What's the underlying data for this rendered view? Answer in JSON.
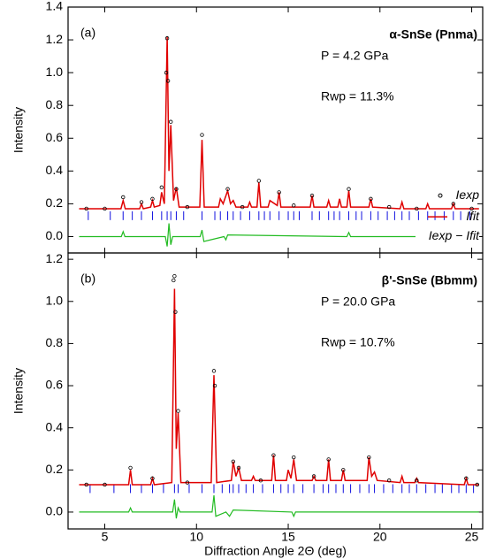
{
  "chart_data": [
    {
      "type": "line",
      "panel_label": "(a)",
      "title": "α-SnSe (Pnma)",
      "pressure": "P = 4.2 GPa",
      "rwp": "Rwp = 11.3%",
      "ylabel": "Intensity",
      "xlim": [
        3,
        25.6
      ],
      "xticks": [
        5,
        10,
        15,
        20,
        25
      ],
      "show_xtick_labels": false,
      "ylim": [
        -0.1,
        1.4
      ],
      "yticks": [
        {
          "value": 0,
          "label": "0.0"
        },
        0.2,
        0.4,
        0.6,
        0.8,
        {
          "value": 1,
          "label": "1.0"
        },
        1.2,
        1.4
      ],
      "series": [
        {
          "name": "Iexp",
          "type": "scatter",
          "color": "#000000",
          "x": [
            4.0,
            5.0,
            6.0,
            7.0,
            7.6,
            8.1,
            8.35,
            8.4,
            8.45,
            8.6,
            8.9,
            9.5,
            10.3,
            11.7,
            12.5,
            13.4,
            14.5,
            15.3,
            16.3,
            18.3,
            19.5,
            20.5,
            22.0,
            24.0,
            25.0
          ],
          "values": [
            0.17,
            0.17,
            0.24,
            0.21,
            0.23,
            0.3,
            1.0,
            1.21,
            0.95,
            0.7,
            0.29,
            0.18,
            0.62,
            0.29,
            0.18,
            0.34,
            0.27,
            0.19,
            0.25,
            0.29,
            0.23,
            0.18,
            0.17,
            0.2,
            0.17
          ]
        },
        {
          "name": "Ifit",
          "type": "line",
          "color": "#e00000",
          "x": [
            3.6,
            5.88,
            6.0,
            6.12,
            6.9,
            7.0,
            7.1,
            7.5,
            7.6,
            7.7,
            8.0,
            8.1,
            8.25,
            8.4,
            8.5,
            8.6,
            8.75,
            8.9,
            9.05,
            10.18,
            10.3,
            10.42,
            11.2,
            11.3,
            11.45,
            11.7,
            11.85,
            12.0,
            12.15,
            12.8,
            12.9,
            13.0,
            13.3,
            13.4,
            13.5,
            13.9,
            14.0,
            14.4,
            14.5,
            14.6,
            16.2,
            16.3,
            16.4,
            17.1,
            17.2,
            17.3,
            17.7,
            17.8,
            17.9,
            18.2,
            18.3,
            18.4,
            19.4,
            19.5,
            19.6,
            21.1,
            21.2,
            21.3,
            22.5,
            22.6,
            22.7,
            23.9,
            24.0,
            24.1,
            25.4
          ],
          "values": [
            0.17,
            0.17,
            0.22,
            0.17,
            0.17,
            0.2,
            0.17,
            0.18,
            0.22,
            0.18,
            0.19,
            0.27,
            0.2,
            1.22,
            0.4,
            0.68,
            0.22,
            0.3,
            0.18,
            0.18,
            0.59,
            0.18,
            0.18,
            0.23,
            0.2,
            0.28,
            0.2,
            0.22,
            0.18,
            0.18,
            0.21,
            0.18,
            0.18,
            0.33,
            0.18,
            0.18,
            0.22,
            0.19,
            0.27,
            0.18,
            0.18,
            0.25,
            0.18,
            0.18,
            0.22,
            0.18,
            0.18,
            0.23,
            0.18,
            0.18,
            0.28,
            0.18,
            0.18,
            0.23,
            0.18,
            0.17,
            0.21,
            0.17,
            0.17,
            0.2,
            0.17,
            0.17,
            0.2,
            0.17,
            0.17
          ]
        },
        {
          "name": "Iexp − Ifit",
          "type": "diff",
          "color": "#22bb22",
          "x": [
            3.6,
            5.9,
            6.0,
            6.1,
            8.3,
            8.4,
            8.5,
            8.6,
            8.7,
            10.2,
            10.3,
            10.4,
            11.5,
            11.6,
            11.7,
            18.2,
            18.3,
            18.4,
            25.4
          ],
          "values": [
            0,
            0,
            0.03,
            0,
            0,
            -0.06,
            0.08,
            -0.05,
            0,
            0,
            0.04,
            -0.03,
            0,
            -0.02,
            0.01,
            0,
            0.025,
            0,
            0
          ]
        },
        {
          "type": "ticks",
          "color": "#1010e0",
          "x": [
            4.1,
            5.3,
            6.0,
            6.5,
            7.0,
            7.6,
            8.1,
            8.4,
            8.6,
            8.9,
            9.3,
            10.3,
            11.0,
            11.3,
            11.7,
            12.0,
            12.4,
            12.9,
            13.4,
            13.7,
            14.0,
            14.5,
            15.0,
            15.3,
            15.6,
            16.3,
            16.7,
            17.2,
            17.5,
            17.8,
            18.3,
            18.7,
            19.0,
            19.5,
            19.9,
            20.4,
            20.8,
            21.2,
            21.6,
            22.1,
            22.6,
            23.0,
            23.5,
            24.0,
            24.4,
            24.9
          ]
        }
      ]
    },
    {
      "type": "line",
      "panel_label": "(b)",
      "title": "β'-SnSe (Bbmm)",
      "pressure": "P = 20.0 GPa",
      "rwp": "Rwp = 10.7%",
      "ylabel": "Intensity",
      "xlabel": "Diffraction Angle 2Θ (deg)",
      "xlim": [
        3,
        25.6
      ],
      "xticks": [
        5,
        10,
        15,
        20,
        25
      ],
      "show_xtick_labels": true,
      "ylim": [
        -0.08,
        1.23
      ],
      "yticks": [
        {
          "value": 0,
          "label": "0.0"
        },
        0.2,
        0.4,
        0.6,
        0.8,
        {
          "value": 1,
          "label": "1.0"
        },
        1.2
      ],
      "series": [
        {
          "type": "scatter",
          "color": "#000000",
          "x": [
            4,
            5,
            6.4,
            7.6,
            8.75,
            8.8,
            8.85,
            9.0,
            9.5,
            10.95,
            11.0,
            12.0,
            12.3,
            13.5,
            14.2,
            15.3,
            16.4,
            17.2,
            18.0,
            19.4,
            20.5,
            22.0,
            24.7,
            25.3
          ],
          "values": [
            0.13,
            0.13,
            0.21,
            0.16,
            1.1,
            1.12,
            0.95,
            0.48,
            0.14,
            0.67,
            0.6,
            0.24,
            0.21,
            0.15,
            0.27,
            0.26,
            0.17,
            0.25,
            0.2,
            0.26,
            0.15,
            0.15,
            0.16,
            0.13
          ]
        },
        {
          "type": "line",
          "color": "#e00000",
          "x": [
            3.6,
            6.3,
            6.4,
            6.5,
            7.5,
            7.6,
            7.7,
            8.65,
            8.8,
            8.9,
            9.0,
            9.15,
            10.8,
            10.95,
            11.1,
            11.9,
            12.0,
            12.15,
            12.3,
            12.45,
            13.0,
            13.1,
            13.2,
            14.1,
            14.2,
            14.3,
            14.9,
            15.0,
            15.15,
            15.3,
            15.45,
            16.3,
            16.4,
            16.5,
            17.1,
            17.2,
            17.3,
            17.9,
            18.0,
            18.1,
            19.3,
            19.4,
            19.55,
            19.7,
            19.85,
            21.1,
            21.2,
            21.3,
            21.9,
            22.0,
            22.1,
            24.6,
            24.7,
            24.8,
            25.4
          ],
          "values": [
            0.13,
            0.13,
            0.2,
            0.13,
            0.13,
            0.16,
            0.13,
            0.14,
            1.06,
            0.3,
            0.47,
            0.14,
            0.14,
            0.65,
            0.14,
            0.15,
            0.24,
            0.17,
            0.21,
            0.15,
            0.15,
            0.17,
            0.15,
            0.15,
            0.27,
            0.15,
            0.15,
            0.2,
            0.16,
            0.25,
            0.15,
            0.15,
            0.17,
            0.15,
            0.15,
            0.25,
            0.15,
            0.15,
            0.2,
            0.15,
            0.15,
            0.26,
            0.17,
            0.19,
            0.15,
            0.14,
            0.17,
            0.14,
            0.14,
            0.16,
            0.14,
            0.13,
            0.16,
            0.13,
            0.13
          ]
        },
        {
          "type": "diff",
          "color": "#22bb22",
          "x": [
            3.6,
            6.3,
            6.4,
            6.5,
            8.7,
            8.8,
            8.9,
            9.0,
            9.1,
            10.85,
            10.95,
            11.05,
            11.6,
            11.8,
            12.0,
            15.2,
            15.3,
            15.4,
            25.4
          ],
          "values": [
            0,
            0,
            0.02,
            0,
            0,
            0.06,
            -0.03,
            0.02,
            0,
            0,
            0.08,
            -0.02,
            0,
            -0.02,
            0.01,
            0,
            -0.02,
            0,
            0
          ]
        },
        {
          "type": "ticks",
          "color": "#1010e0",
          "x": [
            4.2,
            5.5,
            6.4,
            7.0,
            7.6,
            8.2,
            8.8,
            9.0,
            9.6,
            10.3,
            10.95,
            11.4,
            11.8,
            12.0,
            12.3,
            12.7,
            13.1,
            13.6,
            14.2,
            14.6,
            15.0,
            15.3,
            15.8,
            16.4,
            16.9,
            17.2,
            17.6,
            18.0,
            18.4,
            18.9,
            19.4,
            19.7,
            20.2,
            20.7,
            21.2,
            21.6,
            22.0,
            22.5,
            23.0,
            23.4,
            23.9,
            24.3,
            24.7,
            25.1
          ]
        }
      ]
    }
  ]
}
